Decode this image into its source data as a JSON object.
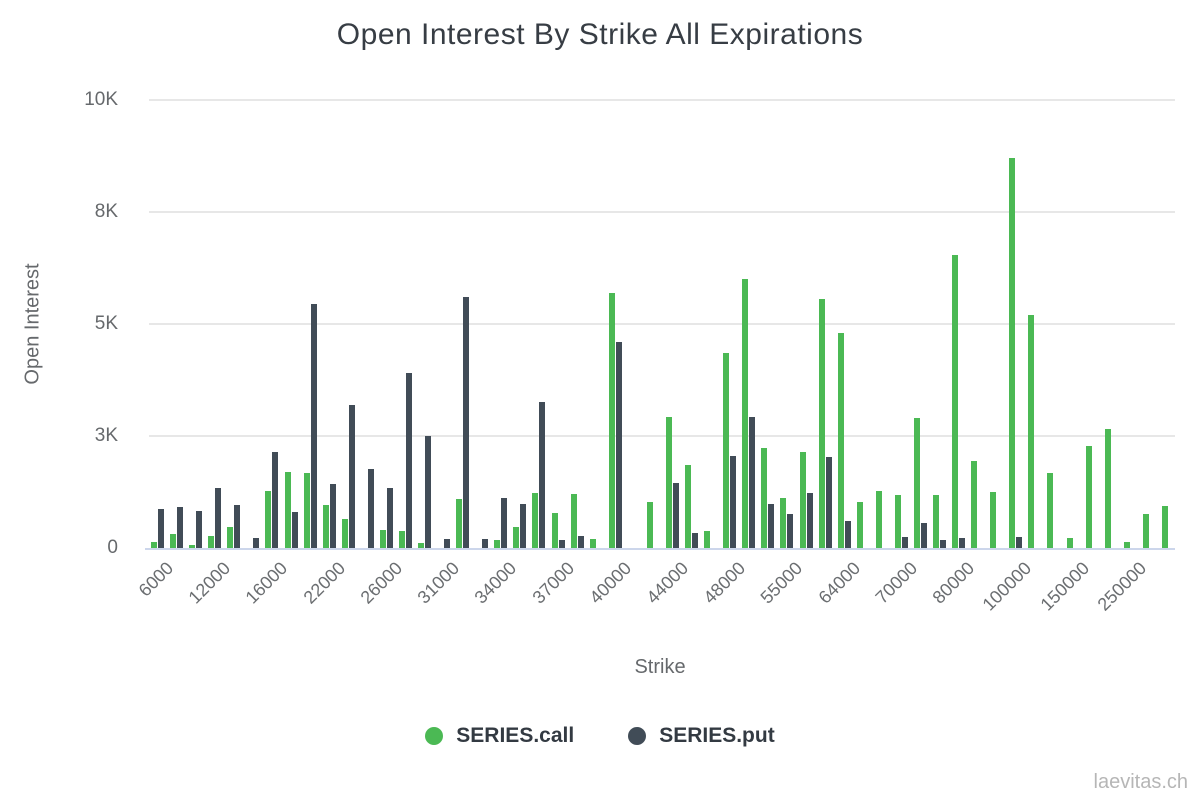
{
  "watermark": "laevitas.ch",
  "colors": {
    "call": "#4bb954",
    "put": "#414c57",
    "gridline": "#e7e7e7",
    "axis_line": "#ccd6eb",
    "tick_text": "#66696c",
    "title_text": "#373d44",
    "legend_text": "#333a42",
    "watermark_text": "#b6b6b6",
    "background": "#ffffff"
  },
  "chart_data": {
    "type": "bar",
    "title": "Open Interest By Strike All Expirations",
    "xlabel": "Strike",
    "ylabel": "Open Interest",
    "ylim": [
      0,
      10000
    ],
    "grid": "horizontal",
    "legend_position": "bottom",
    "y_tick_labels": [
      "0",
      "3K",
      "5K",
      "8K",
      "10K"
    ],
    "y_tick_values": [
      0,
      2500,
      5000,
      7500,
      10000
    ],
    "categories": [
      "6000",
      "",
      "",
      "12000",
      "",
      "",
      "16000",
      "",
      "",
      "22000",
      "",
      "",
      "26000",
      "",
      "",
      "31000",
      "",
      "",
      "34000",
      "",
      "",
      "37000",
      "",
      "",
      "40000",
      "",
      "",
      "44000",
      "",
      "",
      "48000",
      "",
      "",
      "55000",
      "",
      "",
      "64000",
      "",
      "",
      "70000",
      "",
      "",
      "80000",
      "",
      "",
      "100000",
      "",
      "",
      "150000",
      "",
      "",
      "250000",
      "",
      ""
    ],
    "series": [
      {
        "name": "SERIES.call",
        "color": "#4bb954",
        "values": [
          130,
          320,
          60,
          260,
          460,
          0,
          1270,
          1700,
          1680,
          950,
          650,
          0,
          400,
          390,
          120,
          0,
          1100,
          0,
          170,
          480,
          1220,
          790,
          1200,
          210,
          5700,
          0,
          1030,
          2930,
          1860,
          390,
          4350,
          6000,
          2230,
          1120,
          2140,
          5550,
          4800,
          1020,
          1280,
          1190,
          2910,
          1190,
          6550,
          1950,
          1250,
          8700,
          5200,
          1680,
          220,
          2280,
          2650,
          130,
          750,
          930
        ]
      },
      {
        "name": "SERIES.put",
        "color": "#414c57",
        "values": [
          870,
          920,
          820,
          1340,
          950,
          220,
          2140,
          800,
          5450,
          1440,
          3200,
          1760,
          1350,
          3900,
          2490,
          210,
          5600,
          210,
          1120,
          980,
          3250,
          170,
          260,
          0,
          4600,
          0,
          0,
          1450,
          330,
          0,
          2050,
          2930,
          980,
          760,
          1220,
          2040,
          610,
          0,
          0,
          240,
          550,
          190,
          220,
          0,
          0,
          240,
          0,
          0,
          0,
          0,
          0,
          0,
          0,
          0
        ]
      }
    ]
  }
}
